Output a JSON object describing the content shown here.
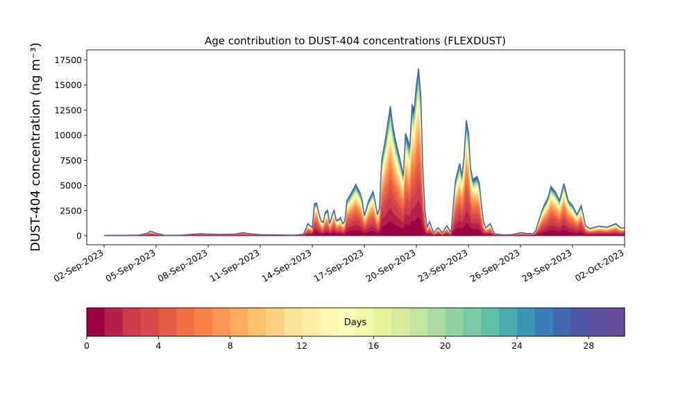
{
  "chart_data": {
    "type": "area",
    "title": "Age contribution to DUST-404 concentrations (FLEXDUST)",
    "ylabel": "DUST-404 concentration (ng m⁻³)",
    "xlabel": "",
    "x_range": [
      "2023-09-01",
      "2023-10-02"
    ],
    "ylim": [
      -900,
      18500
    ],
    "yticks": [
      0,
      2500,
      5000,
      7500,
      10000,
      12500,
      15000,
      17500
    ],
    "xticks": [
      "02-Sep-2023",
      "05-Sep-2023",
      "08-Sep-2023",
      "11-Sep-2023",
      "14-Sep-2023",
      "17-Sep-2023",
      "20-Sep-2023",
      "23-Sep-2023",
      "26-Sep-2023",
      "29-Sep-2023",
      "02-Oct-2023"
    ],
    "stack_layers": 30,
    "total_series": [
      [
        "2023-09-02T00",
        30
      ],
      [
        "2023-09-03T00",
        40
      ],
      [
        "2023-09-04T00",
        60
      ],
      [
        "2023-09-04T12",
        250
      ],
      [
        "2023-09-04T16",
        450
      ],
      [
        "2023-09-05T00",
        250
      ],
      [
        "2023-09-05T12",
        40
      ],
      [
        "2023-09-06T12",
        60
      ],
      [
        "2023-09-07T12",
        200
      ],
      [
        "2023-09-08T12",
        130
      ],
      [
        "2023-09-09T12",
        150
      ],
      [
        "2023-09-10T00",
        300
      ],
      [
        "2023-09-10T12",
        180
      ],
      [
        "2023-09-11T00",
        100
      ],
      [
        "2023-09-12T00",
        80
      ],
      [
        "2023-09-13T00",
        60
      ],
      [
        "2023-09-13T12",
        150
      ],
      [
        "2023-09-13T18",
        1200
      ],
      [
        "2023-09-14T00",
        800
      ],
      [
        "2023-09-14T04",
        4000
      ],
      [
        "2023-09-14T08",
        2500
      ],
      [
        "2023-09-14T14",
        1000
      ],
      [
        "2023-09-14T20",
        3000
      ],
      [
        "2023-09-15T00",
        1200
      ],
      [
        "2023-09-15T06",
        2600
      ],
      [
        "2023-09-15T10",
        1200
      ],
      [
        "2023-09-15T14",
        2000
      ],
      [
        "2023-09-15T20",
        800
      ],
      [
        "2023-09-16T00",
        3500
      ],
      [
        "2023-09-16T08",
        4500
      ],
      [
        "2023-09-16T12",
        5100
      ],
      [
        "2023-09-16T20",
        4000
      ],
      [
        "2023-09-17T00",
        2000
      ],
      [
        "2023-09-17T06",
        3500
      ],
      [
        "2023-09-17T12",
        4400
      ],
      [
        "2023-09-17T16",
        3000
      ],
      [
        "2023-09-17T20",
        1200
      ],
      [
        "2023-09-18T00",
        7500
      ],
      [
        "2023-09-18T06",
        10000
      ],
      [
        "2023-09-18T12",
        12900
      ],
      [
        "2023-09-18T16",
        10500
      ],
      [
        "2023-09-19T00",
        8000
      ],
      [
        "2023-09-19T06",
        6000
      ],
      [
        "2023-09-19T10",
        11600
      ],
      [
        "2023-09-19T14",
        7500
      ],
      [
        "2023-09-19T18",
        13000
      ],
      [
        "2023-09-19T22",
        12500
      ],
      [
        "2023-09-20T02",
        17500
      ],
      [
        "2023-09-20T06",
        14000
      ],
      [
        "2023-09-20T10",
        4000
      ],
      [
        "2023-09-20T14",
        600
      ],
      [
        "2023-09-20T18",
        1400
      ],
      [
        "2023-09-21T00",
        300
      ],
      [
        "2023-09-21T06",
        800
      ],
      [
        "2023-09-21T12",
        300
      ],
      [
        "2023-09-21T18",
        1000
      ],
      [
        "2023-09-22T00",
        300
      ],
      [
        "2023-09-22T06",
        5500
      ],
      [
        "2023-09-22T12",
        7200
      ],
      [
        "2023-09-22T16",
        5500
      ],
      [
        "2023-09-22T22",
        12700
      ],
      [
        "2023-09-23T04",
        5500
      ],
      [
        "2023-09-23T10",
        5800
      ],
      [
        "2023-09-23T14",
        6000
      ],
      [
        "2023-09-23T20",
        1500
      ],
      [
        "2023-09-24T00",
        800
      ],
      [
        "2023-09-24T06",
        1200
      ],
      [
        "2023-09-24T12",
        200
      ],
      [
        "2023-09-25T00",
        80
      ],
      [
        "2023-09-25T12",
        100
      ],
      [
        "2023-09-26T00",
        300
      ],
      [
        "2023-09-26T12",
        200
      ],
      [
        "2023-09-26T20",
        250
      ],
      [
        "2023-09-27T00",
        1200
      ],
      [
        "2023-09-27T08",
        3000
      ],
      [
        "2023-09-27T14",
        3700
      ],
      [
        "2023-09-27T18",
        4900
      ],
      [
        "2023-09-28T00",
        4400
      ],
      [
        "2023-09-28T06",
        3500
      ],
      [
        "2023-09-28T12",
        5200
      ],
      [
        "2023-09-28T18",
        3500
      ],
      [
        "2023-09-29T00",
        3000
      ],
      [
        "2023-09-29T06",
        2100
      ],
      [
        "2023-09-29T12",
        3000
      ],
      [
        "2023-09-29T18",
        1000
      ],
      [
        "2023-09-30T00",
        700
      ],
      [
        "2023-09-30T12",
        950
      ],
      [
        "2023-10-01T00",
        850
      ],
      [
        "2023-10-01T12",
        1200
      ],
      [
        "2023-10-01T18",
        800
      ],
      [
        "2023-10-02T06",
        800
      ]
    ],
    "colorbar": {
      "label": "Days",
      "ticks": [
        0,
        4,
        8,
        12,
        16,
        20,
        24,
        28
      ],
      "range": [
        0,
        30
      ],
      "colors": [
        "#9e0142",
        "#b61f48",
        "#cf3a4c",
        "#dc494c",
        "#e65b48",
        "#f06e44",
        "#f6814c",
        "#f99655",
        "#fcac60",
        "#fdc06f",
        "#fed282",
        "#fee295",
        "#ffeea4",
        "#fff7b2",
        "#fbfdb9",
        "#f2f9aa",
        "#e7f49c",
        "#d6ee9b",
        "#c2e69f",
        "#abdca2",
        "#93d3a3",
        "#7ac9a4",
        "#62bda7",
        "#4ea8b0",
        "#3e95b8",
        "#3a7fb8",
        "#4268ad",
        "#4e55a3",
        "#5e4fa2",
        "#6a4a9c"
      ]
    }
  }
}
